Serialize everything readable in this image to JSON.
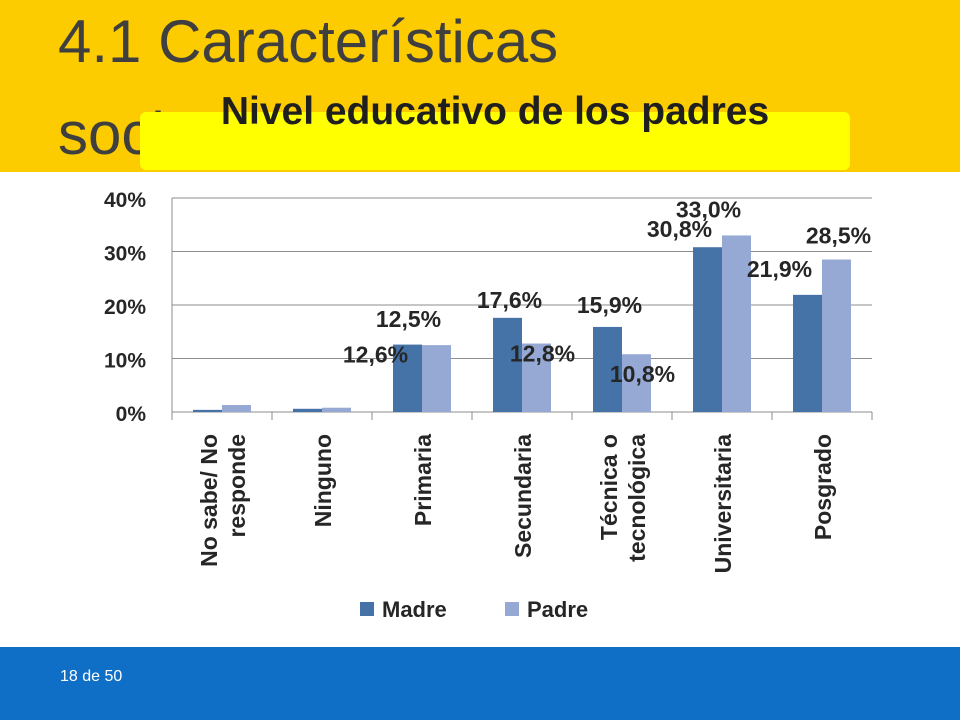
{
  "slide": {
    "title": "4.1 Características",
    "title_line2": "socio",
    "slide_number": "18 de 50"
  },
  "colors": {
    "top_band": "#fccb00",
    "subtitle_box": "#ffff00",
    "bottom_band": "#0f6fc6",
    "madre": "#4572a7",
    "padre": "#95a9d4"
  },
  "chart_data": {
    "type": "bar",
    "title": "Nivel educativo de los padres",
    "categories": [
      [
        "No sabe/ No",
        "responde"
      ],
      [
        "Ninguno"
      ],
      [
        "Primaria"
      ],
      [
        "Secundaria"
      ],
      [
        "Técnica o",
        "tecnológica"
      ],
      [
        "Universitaria"
      ],
      [
        "Posgrado"
      ]
    ],
    "series": [
      {
        "name": "Madre",
        "color": "#4572a7",
        "values": [
          0.4,
          0.6,
          12.6,
          17.6,
          15.9,
          30.8,
          21.9
        ],
        "labels": [
          "",
          "",
          "12,6%",
          "17,6%",
          "15,9%",
          "30,8%",
          "21,9%"
        ]
      },
      {
        "name": "Padre",
        "color": "#95a9d4",
        "values": [
          1.3,
          0.8,
          12.5,
          12.8,
          10.8,
          33.0,
          28.5
        ],
        "labels": [
          "",
          "",
          "12,5%",
          "12,8%",
          "10,8%",
          "33,0%",
          "28,5%"
        ]
      }
    ],
    "yticks": [
      "0%",
      "10%",
      "20%",
      "30%",
      "40%"
    ],
    "ylim": [
      0,
      40
    ],
    "grid": true,
    "legend": "bottom"
  }
}
